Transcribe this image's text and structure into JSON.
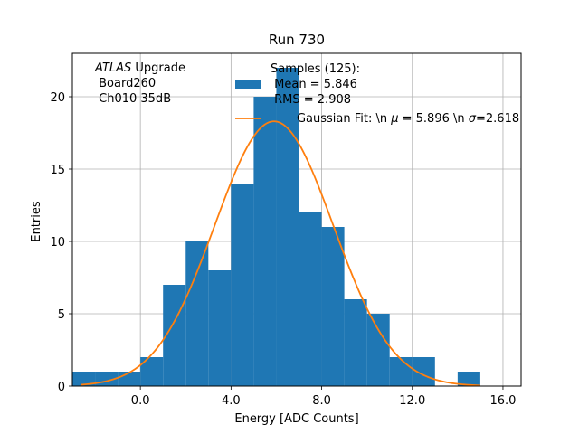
{
  "chart_data": {
    "type": "bar",
    "title": "Run 730",
    "xlabel": "Energy [ADC Counts]",
    "ylabel": "Entries",
    "xlim": [
      -3.0,
      16.8
    ],
    "ylim": [
      0,
      23
    ],
    "grid": true,
    "x_ticks": [
      0,
      4,
      8,
      12,
      16
    ],
    "x_tick_labels": [
      "0.0",
      "4.0",
      "8.0",
      "12.0",
      "16.0"
    ],
    "y_ticks": [
      0,
      5,
      10,
      15,
      20
    ],
    "y_tick_labels": [
      "0",
      "5",
      "10",
      "15",
      "20"
    ],
    "histogram": {
      "name": "Samples (125)",
      "color": "#1f77b4",
      "bin_edges": [
        -3,
        -2,
        -1,
        0,
        1,
        2,
        3,
        4,
        5,
        6,
        7,
        8,
        9,
        10,
        11,
        12,
        13,
        14,
        15
      ],
      "counts": [
        1,
        1,
        1,
        2,
        7,
        10,
        8,
        14,
        20,
        22,
        12,
        11,
        6,
        5,
        2,
        2,
        0,
        1
      ]
    },
    "fit": {
      "name": "Gaussian Fit",
      "color": "#ff7f0e",
      "mu": 5.896,
      "sigma": 2.618,
      "amplitude": 18.3,
      "x_range": [
        -2.6,
        15.0
      ]
    },
    "annotation": {
      "italic_part": "ATLAS",
      "line1_rest": " Upgrade",
      "line2": " Board260",
      "line3": " Ch010 35dB"
    },
    "legend": {
      "position": "top-right",
      "hist_line1": "Samples (125):",
      "hist_line2": " Mean = 5.846",
      "hist_line3": " RMS = 2.908",
      "fit_label_a": "Gaussian Fit: \\n ",
      "fit_mu_symbol": "μ",
      "fit_label_b": " = 5.896 \\n ",
      "fit_sigma_symbol": "σ",
      "fit_label_c": "=2.618"
    }
  }
}
